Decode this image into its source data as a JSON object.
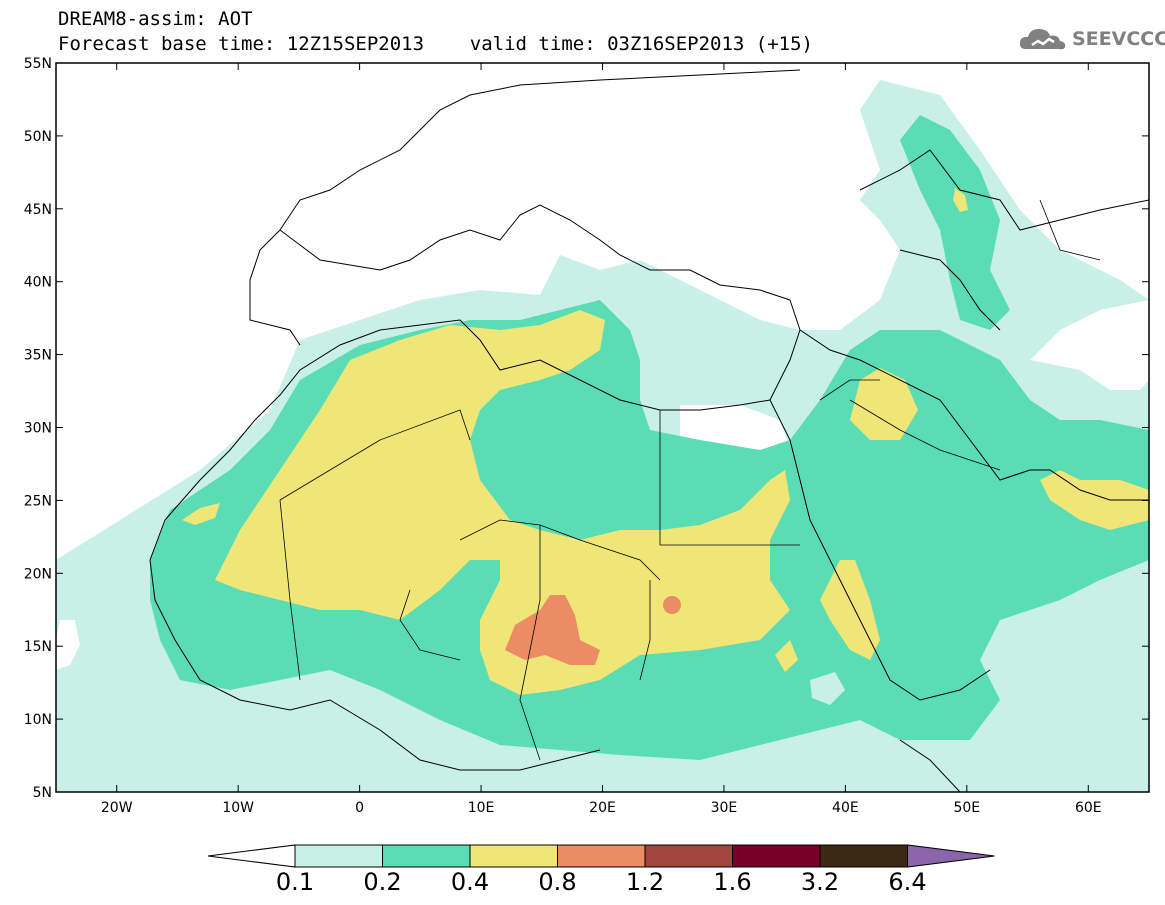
{
  "header": {
    "line1": "DREAM8-assim: AOT",
    "line2": "Forecast base time: 12Z15SEP2013    valid time: 03Z16SEP2013 (+15)"
  },
  "logo": {
    "text": "SEEVCCC",
    "icon": "cloud-icon"
  },
  "map": {
    "variable": "AOT",
    "projection": "lat-lon",
    "lat_range": [
      5,
      55
    ],
    "lon_range": [
      -25,
      65
    ],
    "lat_ticks": [
      "55N",
      "50N",
      "45N",
      "40N",
      "35N",
      "30N",
      "25N",
      "20N",
      "15N",
      "10N",
      "5N"
    ],
    "lon_ticks": [
      "20W",
      "10W",
      "0",
      "10E",
      "20E",
      "30E",
      "40E",
      "50E",
      "60E"
    ]
  },
  "colorbar": {
    "levels": [
      "0.1",
      "0.2",
      "0.4",
      "0.8",
      "1.2",
      "1.6",
      "3.2",
      "6.4"
    ],
    "colors": [
      "#c8f0e6",
      "#5adcb4",
      "#f0e678",
      "#eb8c64",
      "#a0463c",
      "#780028",
      "#3c2814",
      "#8c64aa"
    ],
    "under_color": "#ffffff"
  },
  "colors": {
    "c1": "#c8f0e6",
    "c2": "#5adcb4",
    "c3": "#f0e678",
    "c4": "#eb8c64",
    "c5": "#a0463c"
  }
}
